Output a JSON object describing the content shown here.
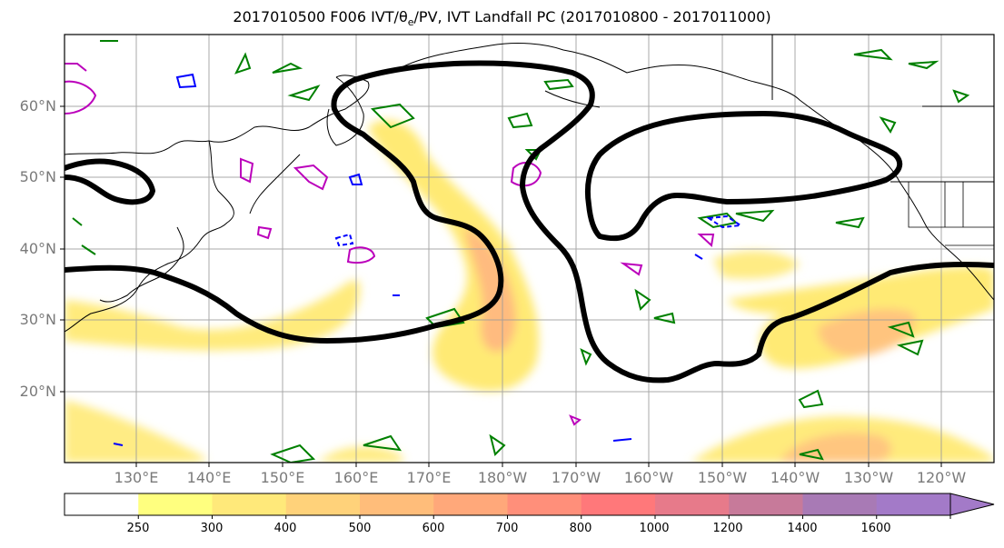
{
  "title": {
    "prefix": "2017010500 F006 IVT/",
    "theta": "θ",
    "theta_sub": "e",
    "suffix": "/PV, IVT Landfall PC (2017010800 - 2017011000)"
  },
  "map": {
    "lat_labels": [
      "60°N",
      "50°N",
      "40°N",
      "30°N",
      "20°N"
    ],
    "lat_values": [
      60,
      50,
      40,
      30,
      20
    ],
    "lon_labels": [
      "130°E",
      "140°E",
      "150°E",
      "160°E",
      "170°E",
      "180°W",
      "170°W",
      "160°W",
      "150°W",
      "140°W",
      "130°W",
      "120°W"
    ],
    "lon_values": [
      130,
      140,
      150,
      160,
      170,
      180,
      190,
      200,
      210,
      220,
      230,
      240
    ],
    "extent": {
      "lon_min": 120,
      "lon_max": 247,
      "lat_min": 10,
      "lat_max": 70
    },
    "gridlines": true
  },
  "colorbar": {
    "labels": [
      "250",
      "300",
      "400",
      "500",
      "600",
      "700",
      "800",
      "1000",
      "1200",
      "1400",
      "1600"
    ],
    "colors": [
      "#ffffff",
      "#ffff7f",
      "#ffe97a",
      "#ffd27a",
      "#ffbd7a",
      "#ffa87a",
      "#ff8f7a",
      "#ff787a",
      "#e77a8a",
      "#c77a9a",
      "#a87ab5",
      "#a37ac8"
    ]
  },
  "colors": {
    "pc_contour": "#000000",
    "theta_e": "#008000",
    "pv_high": "#bb00bb",
    "pv_low": "#0000ff",
    "coast": "#000000"
  }
}
